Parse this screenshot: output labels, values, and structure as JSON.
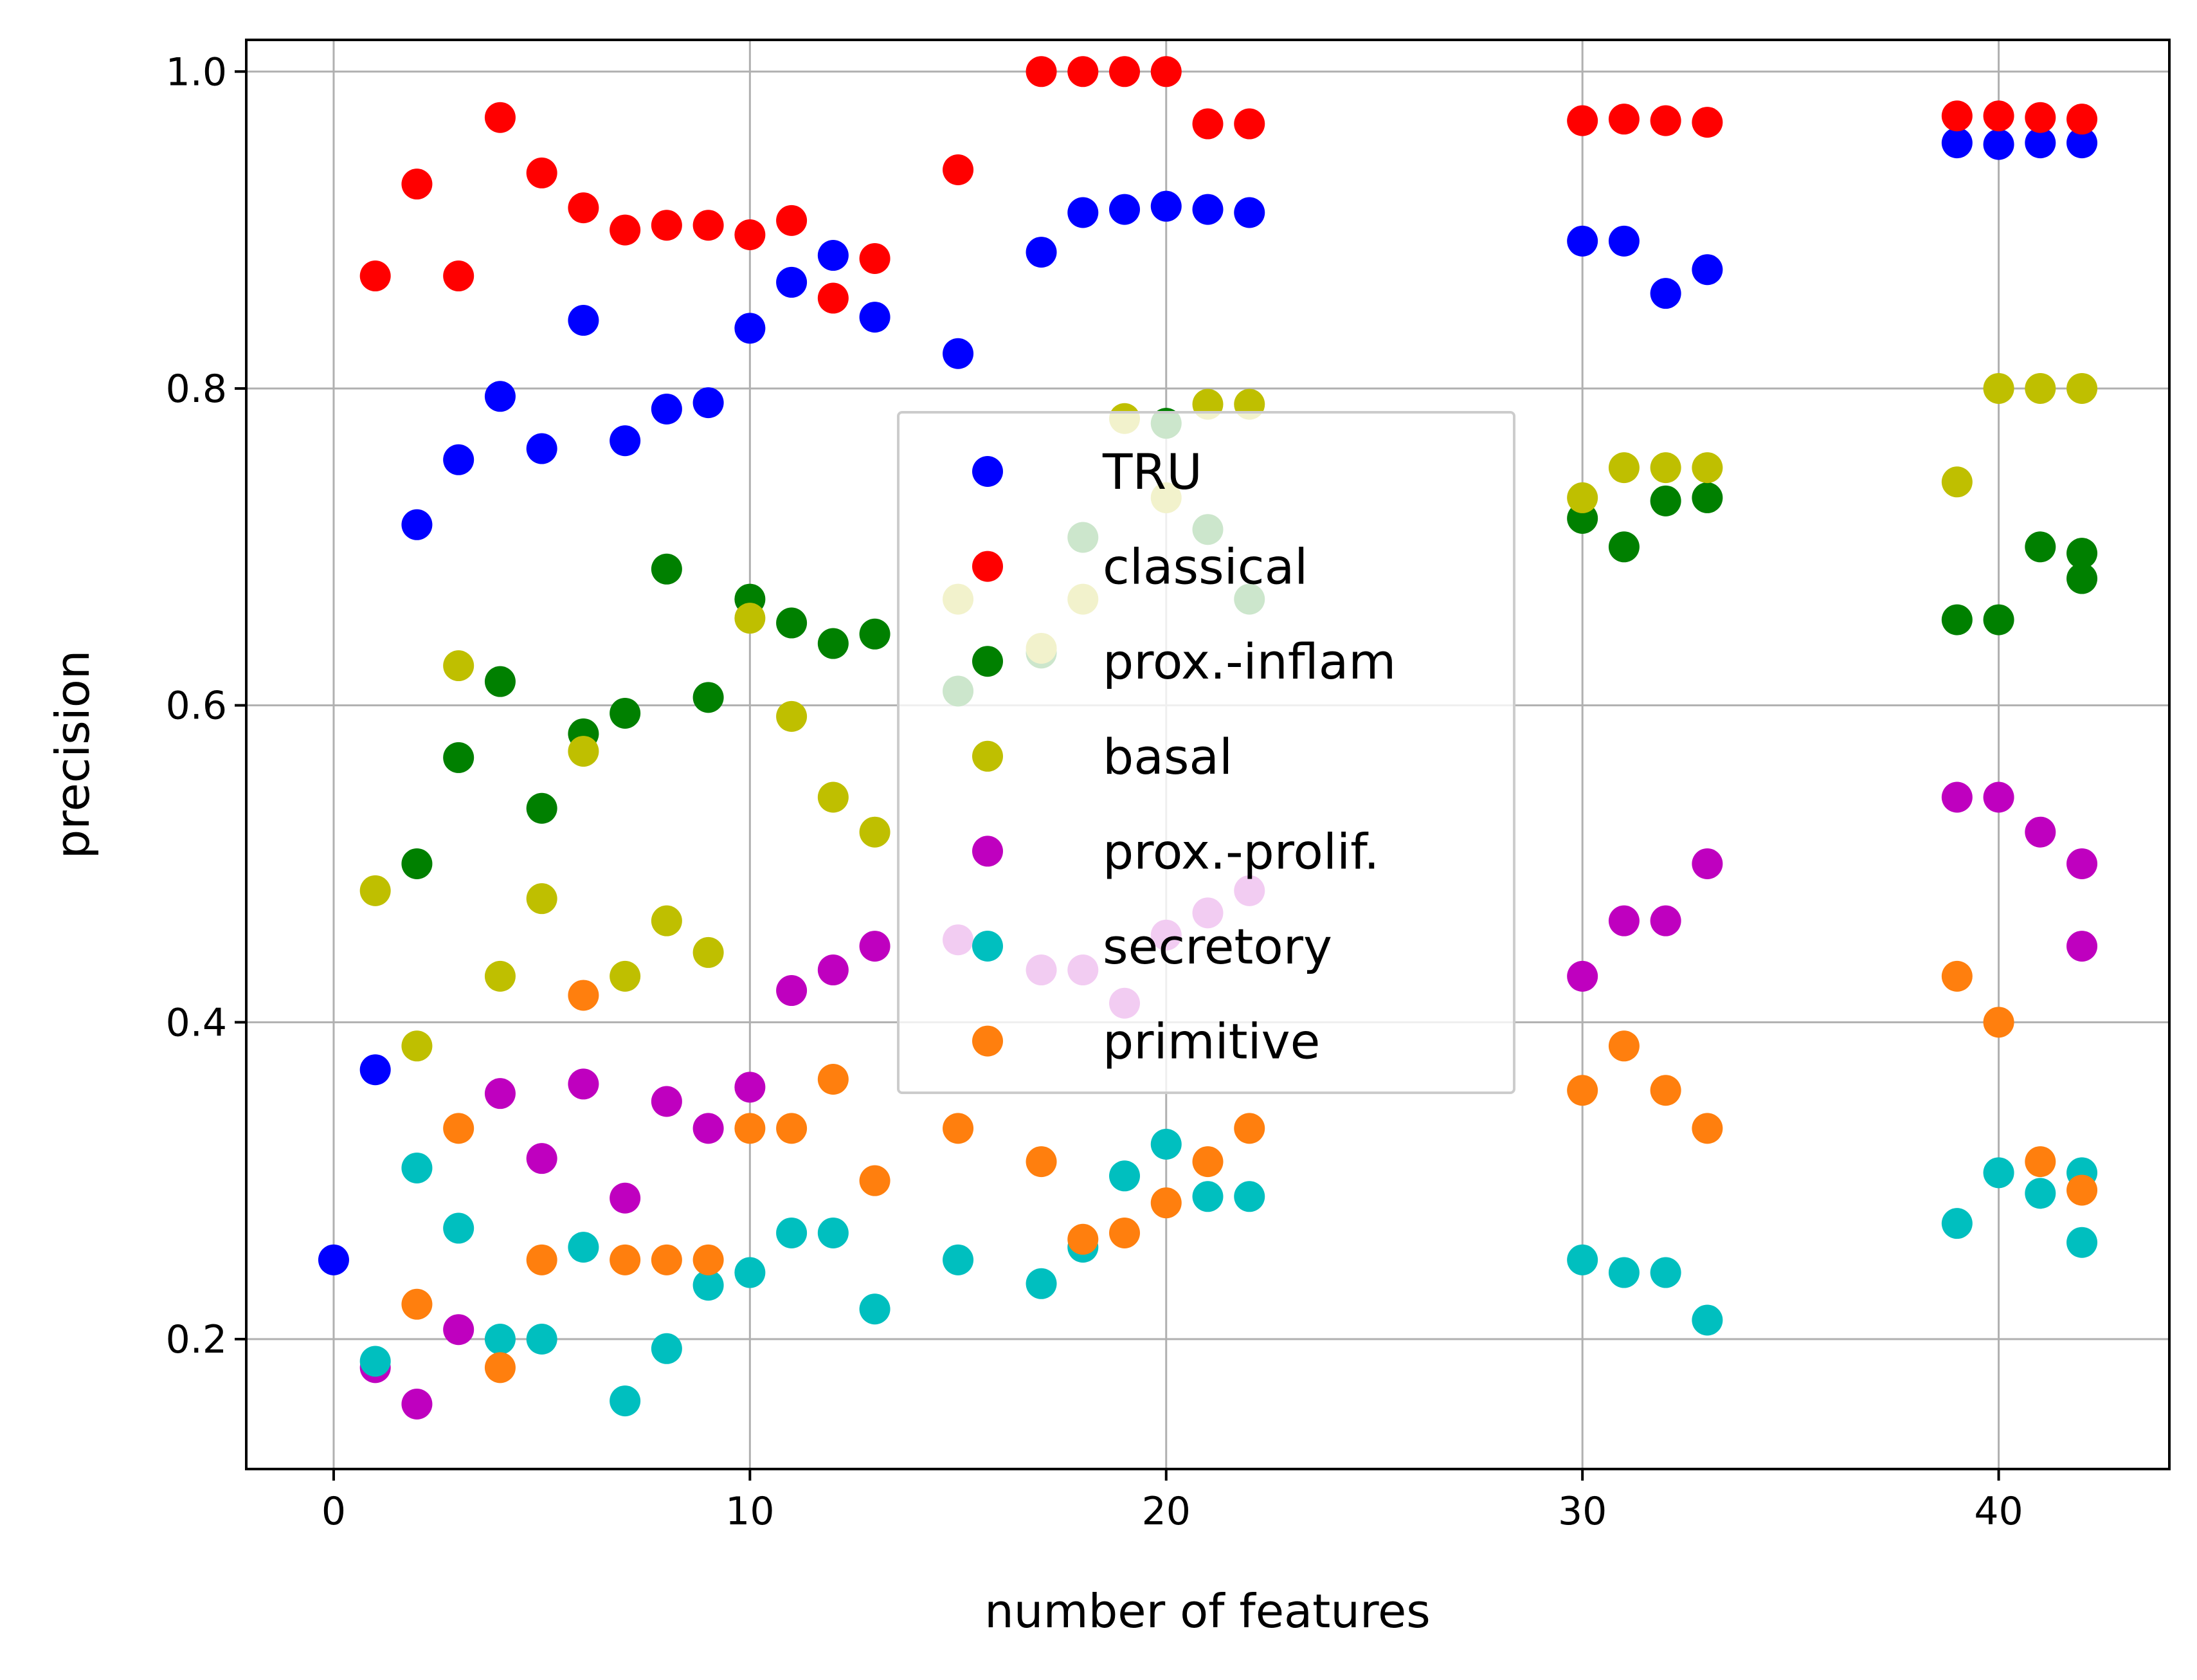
{
  "chart_data": {
    "type": "scatter",
    "title": "",
    "xlabel": "number of features",
    "ylabel": "precision",
    "xlim": [
      -2.1,
      44.1
    ],
    "ylim": [
      0.118,
      1.02
    ],
    "x_ticks": [
      0,
      10,
      20,
      30,
      40
    ],
    "x_tick_labels": [
      "0",
      "10",
      "20",
      "30",
      "40"
    ],
    "y_ticks": [
      0.2,
      0.4,
      0.6,
      0.8,
      1.0
    ],
    "y_tick_labels": [
      "0.2",
      "0.4",
      "0.6",
      "0.8",
      "1.0"
    ],
    "grid": true,
    "legend_position": "center",
    "series": [
      {
        "name": "TRU",
        "color": "#0000ff",
        "x": [
          0,
          1,
          2,
          3,
          4,
          5,
          6,
          7,
          8,
          9,
          10,
          11,
          12,
          13,
          15,
          17,
          18,
          19,
          20,
          21,
          22,
          30,
          31,
          32,
          33,
          39,
          40,
          41,
          42
        ],
        "y": [
          0.25,
          0.37,
          0.714,
          0.755,
          0.795,
          0.762,
          0.843,
          0.767,
          0.787,
          0.791,
          0.838,
          0.867,
          0.884,
          0.845,
          0.822,
          0.886,
          0.911,
          0.913,
          0.915,
          0.913,
          0.911,
          0.893,
          0.893,
          0.86,
          0.875,
          0.955,
          0.954,
          0.955,
          0.955
        ]
      },
      {
        "name": "classical",
        "color": "#ff0000",
        "x": [
          1,
          2,
          3,
          4,
          5,
          6,
          7,
          8,
          9,
          10,
          11,
          12,
          13,
          15,
          17,
          18,
          19,
          20,
          21,
          22,
          30,
          31,
          32,
          33,
          39,
          40,
          41,
          42
        ],
        "y": [
          0.871,
          0.929,
          0.871,
          0.971,
          0.936,
          0.914,
          0.9,
          0.903,
          0.903,
          0.897,
          0.906,
          0.857,
          0.882,
          0.938,
          1.0,
          1.0,
          1.0,
          1.0,
          0.967,
          0.967,
          0.969,
          0.97,
          0.969,
          0.968,
          0.972,
          0.972,
          0.971,
          0.97
        ]
      },
      {
        "name": "prox.-inflam",
        "color": "#008000",
        "x": [
          2,
          3,
          4,
          5,
          6,
          7,
          8,
          9,
          10,
          11,
          12,
          13,
          15,
          17,
          18,
          20,
          21,
          22,
          30,
          31,
          32,
          33,
          39,
          40,
          41,
          42,
          42
        ],
        "y": [
          0.5,
          0.567,
          0.615,
          0.535,
          0.582,
          0.595,
          0.686,
          0.605,
          0.667,
          0.652,
          0.639,
          0.645,
          0.609,
          0.633,
          0.706,
          0.778,
          0.711,
          0.667,
          0.718,
          0.7,
          0.729,
          0.731,
          0.654,
          0.654,
          0.7,
          0.696,
          0.68
        ]
      },
      {
        "name": "basal",
        "color": "#bfbf00",
        "x": [
          1,
          2,
          3,
          4,
          5,
          6,
          7,
          8,
          9,
          10,
          11,
          12,
          13,
          15,
          17,
          18,
          19,
          20,
          21,
          22,
          30,
          31,
          32,
          33,
          39,
          40,
          41,
          42
        ],
        "y": [
          0.483,
          0.385,
          0.625,
          0.429,
          0.478,
          0.571,
          0.429,
          0.464,
          0.444,
          0.655,
          0.593,
          0.542,
          0.52,
          0.667,
          0.636,
          0.667,
          0.781,
          0.731,
          0.79,
          0.79,
          0.731,
          0.75,
          0.75,
          0.75,
          0.741,
          0.8,
          0.8,
          0.8
        ]
      },
      {
        "name": "prox.-prolif.",
        "color": "#bf00bf",
        "x": [
          1,
          2,
          3,
          4,
          5,
          6,
          7,
          8,
          9,
          10,
          11,
          12,
          13,
          15,
          17,
          18,
          19,
          20,
          21,
          22,
          30,
          31,
          32,
          33,
          39,
          40,
          41,
          42,
          42
        ],
        "y": [
          0.182,
          0.159,
          0.206,
          0.355,
          0.314,
          0.361,
          0.289,
          0.35,
          0.333,
          0.359,
          0.42,
          0.433,
          0.448,
          0.452,
          0.433,
          0.433,
          0.412,
          0.455,
          0.469,
          0.483,
          0.429,
          0.464,
          0.464,
          0.5,
          0.542,
          0.542,
          0.52,
          0.5,
          0.448
        ]
      },
      {
        "name": "secretory",
        "color": "#00bfbf",
        "x": [
          1,
          2,
          3,
          4,
          5,
          6,
          7,
          8,
          9,
          10,
          11,
          12,
          13,
          15,
          17,
          18,
          19,
          20,
          21,
          22,
          30,
          31,
          32,
          33,
          39,
          40,
          41,
          42,
          42
        ],
        "y": [
          0.186,
          0.308,
          0.27,
          0.2,
          0.2,
          0.258,
          0.161,
          0.194,
          0.234,
          0.242,
          0.267,
          0.267,
          0.219,
          0.25,
          0.235,
          0.258,
          0.303,
          0.323,
          0.29,
          0.29,
          0.25,
          0.242,
          0.242,
          0.212,
          0.273,
          0.305,
          0.292,
          0.305,
          0.261
        ]
      },
      {
        "name": "primitive",
        "color": "#ff7f0e",
        "x": [
          2,
          3,
          4,
          5,
          6,
          7,
          8,
          9,
          10,
          11,
          12,
          13,
          15,
          17,
          18,
          19,
          20,
          21,
          22,
          30,
          31,
          32,
          33,
          39,
          40,
          41,
          42
        ],
        "y": [
          0.222,
          0.333,
          0.182,
          0.25,
          0.417,
          0.25,
          0.25,
          0.25,
          0.333,
          0.333,
          0.364,
          0.3,
          0.333,
          0.312,
          0.263,
          0.267,
          0.286,
          0.312,
          0.333,
          0.357,
          0.385,
          0.357,
          0.333,
          0.429,
          0.4,
          0.312,
          0.294
        ]
      }
    ]
  }
}
